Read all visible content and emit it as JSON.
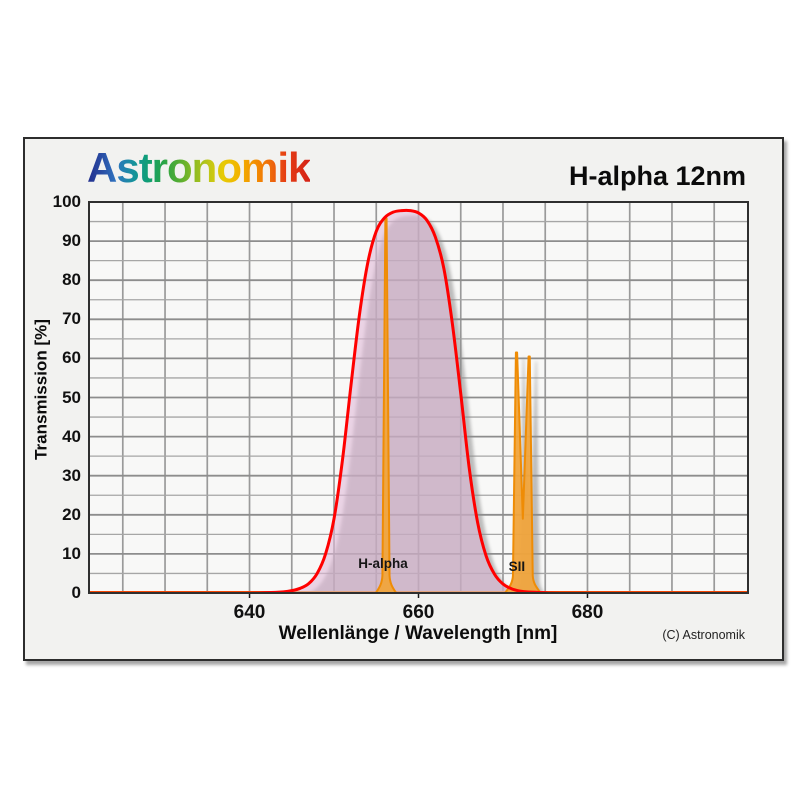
{
  "header": {
    "logo_text": "Astronomik",
    "title": "H-alpha 12nm"
  },
  "footer": {
    "copyright": "(C) Astronomik"
  },
  "chart_data": {
    "type": "area",
    "title": "H-alpha 12nm",
    "xlabel": "Wellenlänge / Wavelength [nm]",
    "ylabel": "Transmission [%]",
    "xlim": [
      621,
      699
    ],
    "ylim": [
      0,
      100
    ],
    "x_ticks": [
      640,
      660,
      680
    ],
    "y_ticks": [
      0,
      10,
      20,
      30,
      40,
      50,
      60,
      70,
      80,
      90,
      100
    ],
    "x_grid_step_nm": 5,
    "y_grid_step_pct": 5,
    "grid": true,
    "legend": false,
    "series": [
      {
        "name": "filter-transmission-curve",
        "color": "#ff0000",
        "fill": "rgba(224,185,215,0.58)",
        "points": [
          [
            621,
            0
          ],
          [
            638,
            0
          ],
          [
            642,
            0.1
          ],
          [
            644,
            0.3
          ],
          [
            645,
            0.6
          ],
          [
            646,
            1.2
          ],
          [
            647,
            2.4
          ],
          [
            648,
            5
          ],
          [
            649,
            10
          ],
          [
            650,
            19
          ],
          [
            651,
            34
          ],
          [
            652,
            53
          ],
          [
            653,
            71
          ],
          [
            654,
            84.5
          ],
          [
            655,
            92.5
          ],
          [
            656,
            96
          ],
          [
            657,
            97.4
          ],
          [
            658,
            97.8
          ],
          [
            659,
            97.8
          ],
          [
            660,
            97.2
          ],
          [
            661,
            95.3
          ],
          [
            662,
            91
          ],
          [
            663,
            83
          ],
          [
            664,
            69
          ],
          [
            665,
            51
          ],
          [
            666,
            32
          ],
          [
            667,
            18
          ],
          [
            668,
            9.5
          ],
          [
            669,
            4.8
          ],
          [
            670,
            2.3
          ],
          [
            671,
            1.1
          ],
          [
            672,
            0.5
          ],
          [
            673,
            0.25
          ],
          [
            675,
            0.1
          ],
          [
            678,
            0
          ],
          [
            699,
            0
          ]
        ]
      }
    ],
    "emission_lines": [
      {
        "name": "h-alpha-line",
        "label": "H-alpha",
        "peaks": [
          {
            "wavelength": 656.15,
            "height": 95.8
          }
        ],
        "label_pos": {
          "wavelength": 655.8,
          "pct": 7.4
        }
      },
      {
        "name": "sii-line",
        "label": "SII",
        "peaks": [
          {
            "wavelength": 671.6,
            "height": 61.5
          },
          {
            "wavelength": 673.1,
            "height": 60.5
          }
        ],
        "valley_pct": 19,
        "label_pos": {
          "wavelength": 671.65,
          "pct": 6.6
        }
      }
    ],
    "colors": {
      "plot_bg": "#f8f8f7",
      "plot_border": "#2f2f2f",
      "grid_major": "#8d8d8d",
      "grid_minor": "#a6a6a6",
      "grid_vertical": "#9a9a9a",
      "curve": "#ff0000",
      "curve_fill": "rgba(224,185,215,0.58)",
      "emission_stroke": "#ef8c05",
      "emission_fill": "rgba(240,164,60,0.95)",
      "shadow": "#8b8b8b",
      "tick": "#1a1a1a"
    }
  }
}
